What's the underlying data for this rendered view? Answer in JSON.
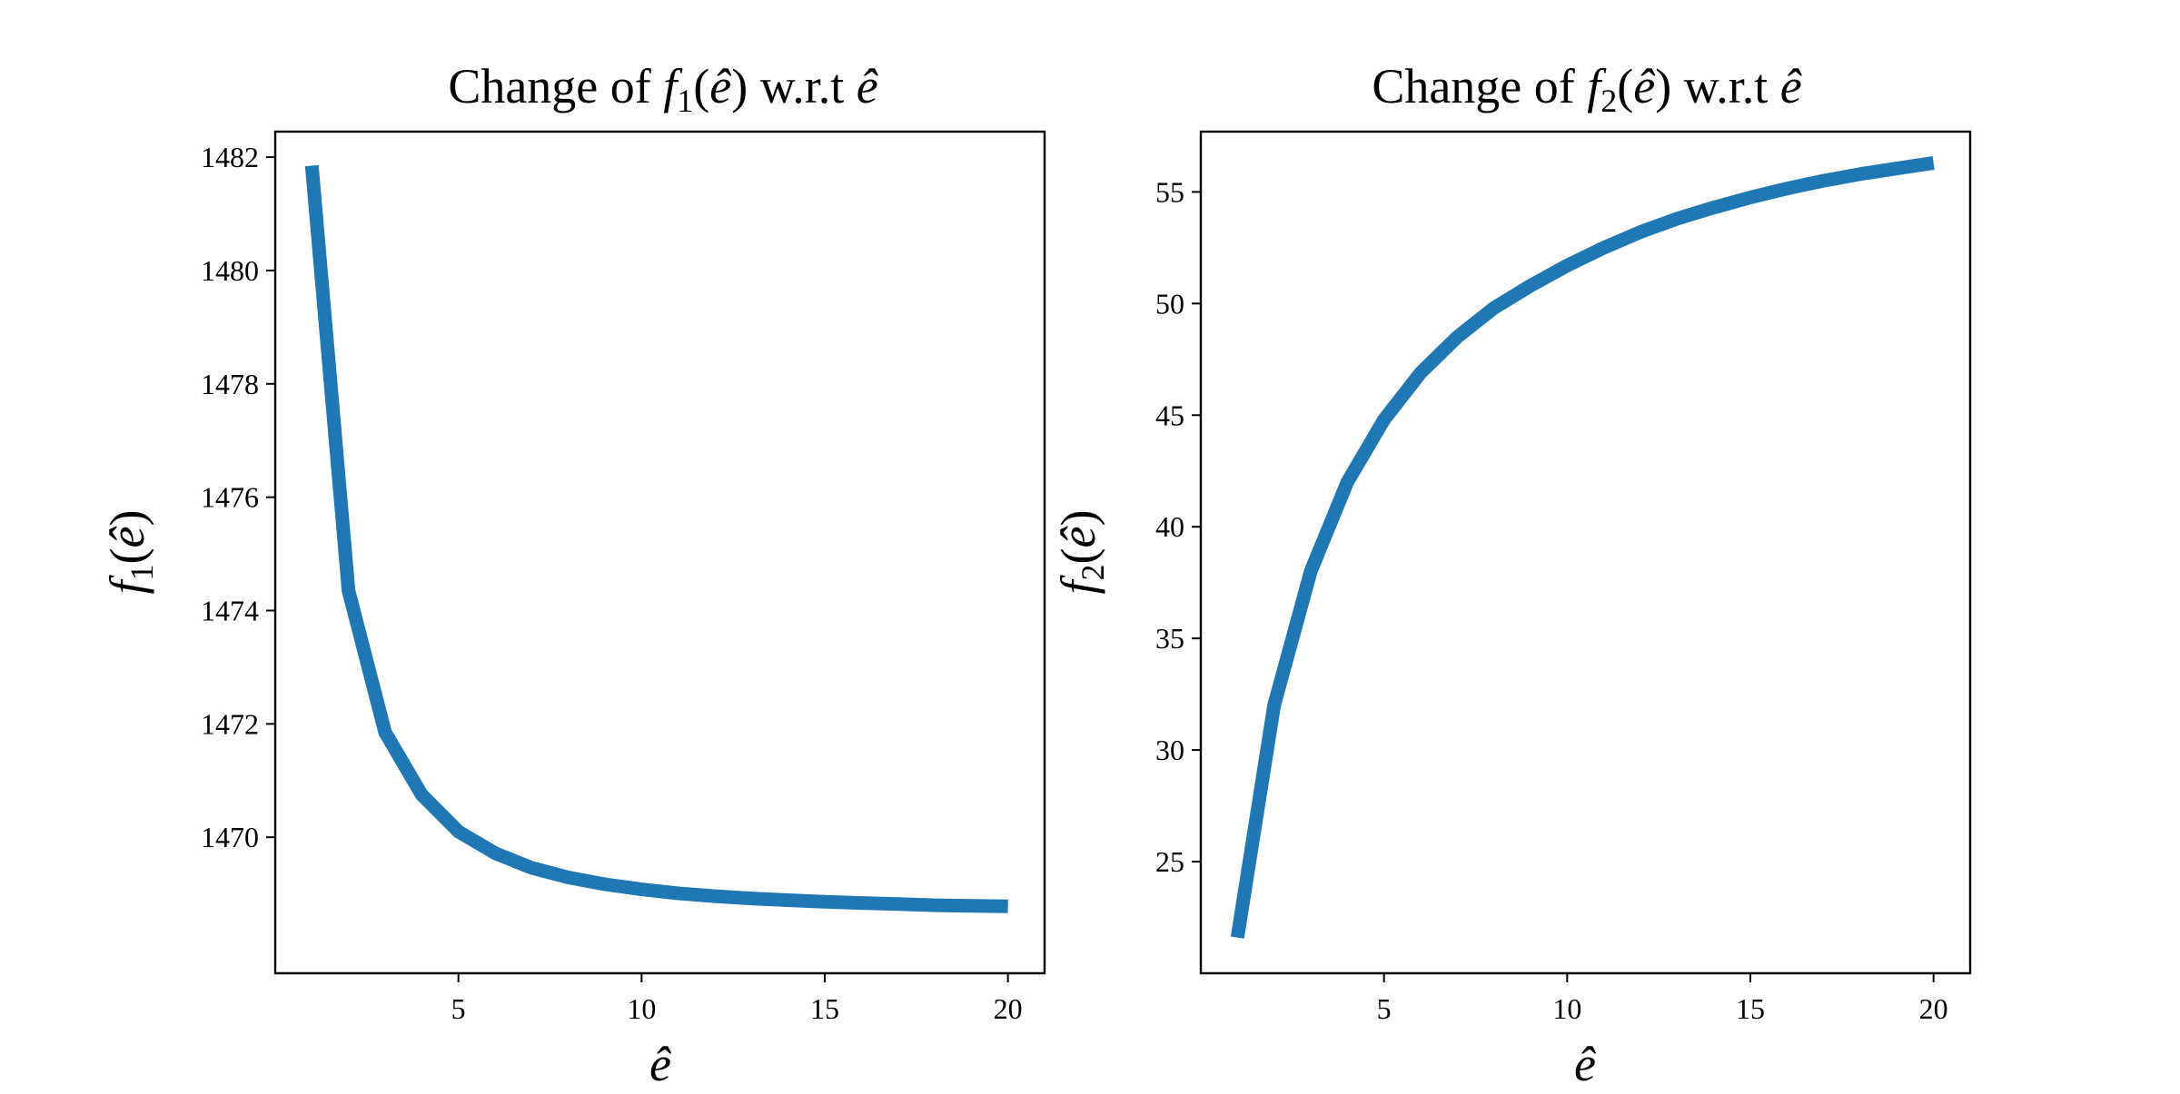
{
  "chart_data": [
    {
      "type": "line",
      "title": "Change of f₁(ê) w.r.t ê",
      "xlabel": "ê",
      "ylabel": "f₁(ê)",
      "xlim": [
        0.0,
        21.0
      ],
      "ylim": [
        1467.6,
        1482.45
      ],
      "xticks": [
        5,
        10,
        15,
        20
      ],
      "yticks": [
        1470,
        1472,
        1474,
        1476,
        1478,
        1480,
        1482
      ],
      "grid": false,
      "series": [
        {
          "color": "#1f77b4",
          "x": [
            1,
            2,
            3,
            4,
            5,
            6,
            7,
            8,
            9,
            10,
            11,
            12,
            13,
            14,
            15,
            16,
            17,
            18,
            19,
            20
          ],
          "y": [
            1481.85,
            1474.35,
            1471.85,
            1470.75,
            1470.1,
            1469.72,
            1469.46,
            1469.29,
            1469.17,
            1469.08,
            1469.01,
            1468.96,
            1468.92,
            1468.89,
            1468.86,
            1468.84,
            1468.82,
            1468.8,
            1468.79,
            1468.78
          ]
        }
      ]
    },
    {
      "type": "line",
      "title": "Change of f₂(ê) w.r.t ê",
      "xlabel": "ê",
      "ylabel": "f₂(ê)",
      "xlim": [
        0.0,
        21.0
      ],
      "ylim": [
        20.0,
        57.7
      ],
      "xticks": [
        5,
        10,
        15,
        20
      ],
      "yticks": [
        25,
        30,
        35,
        40,
        45,
        50,
        55
      ],
      "grid": false,
      "series": [
        {
          "color": "#1f77b4",
          "x": [
            1,
            2,
            3,
            4,
            5,
            6,
            7,
            8,
            9,
            10,
            11,
            12,
            13,
            14,
            15,
            16,
            17,
            18,
            19,
            20
          ],
          "y": [
            21.6,
            32.0,
            38.0,
            42.0,
            44.8,
            46.9,
            48.5,
            49.8,
            50.8,
            51.7,
            52.5,
            53.2,
            53.8,
            54.3,
            54.75,
            55.15,
            55.5,
            55.8,
            56.05,
            56.3
          ]
        }
      ]
    }
  ]
}
